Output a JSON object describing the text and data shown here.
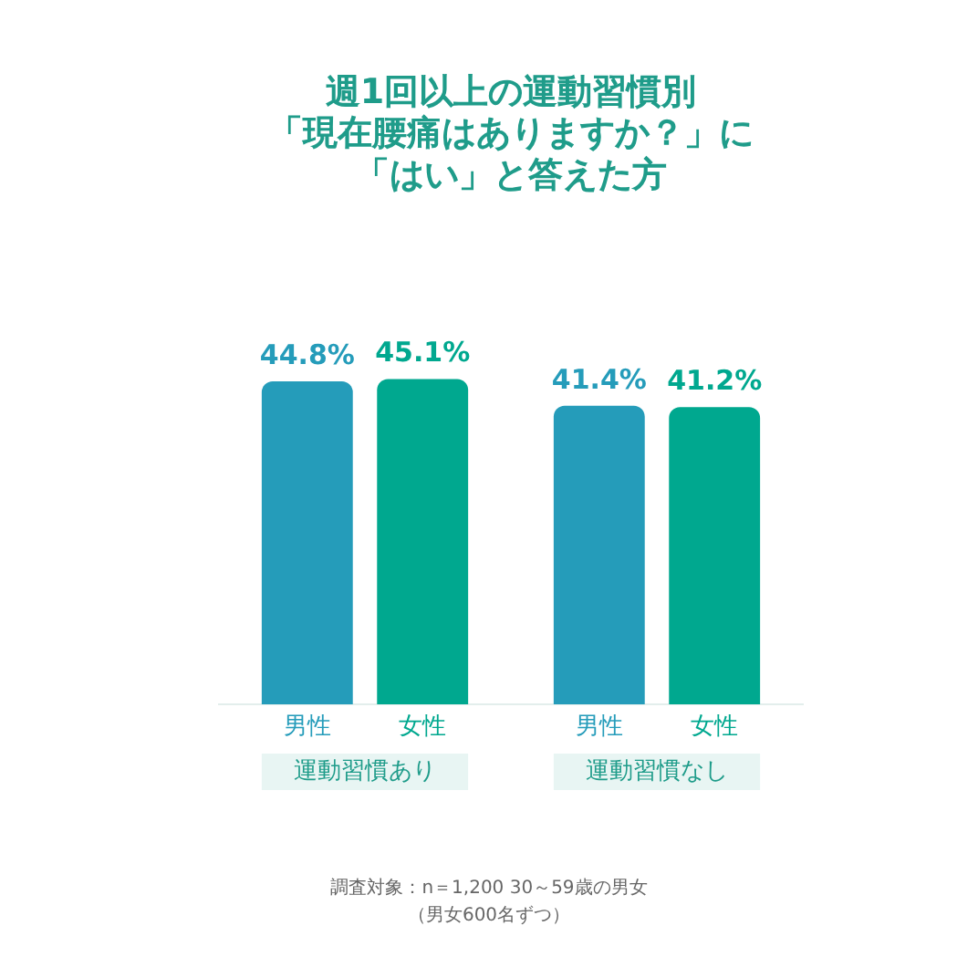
{
  "chart_data": {
    "type": "bar",
    "title": "週1回以上の運動習慣別「現在腰痛はありますか？」に「はい」と答えた方",
    "categories": [
      "運動習慣あり",
      "運動習慣なし"
    ],
    "series": [
      {
        "name": "男性",
        "color": "#259cba",
        "values": [
          44.8,
          41.4
        ],
        "value_labels": [
          "44.8%",
          "41.4%"
        ]
      },
      {
        "name": "女性",
        "color": "#00a88f",
        "values": [
          45.1,
          41.2
        ],
        "value_labels": [
          "45.1%",
          "41.2%"
        ]
      }
    ],
    "annotations": [
      "調査対象：n＝1,200 30～59歳の男女（男女600名ずつ）"
    ]
  }
}
